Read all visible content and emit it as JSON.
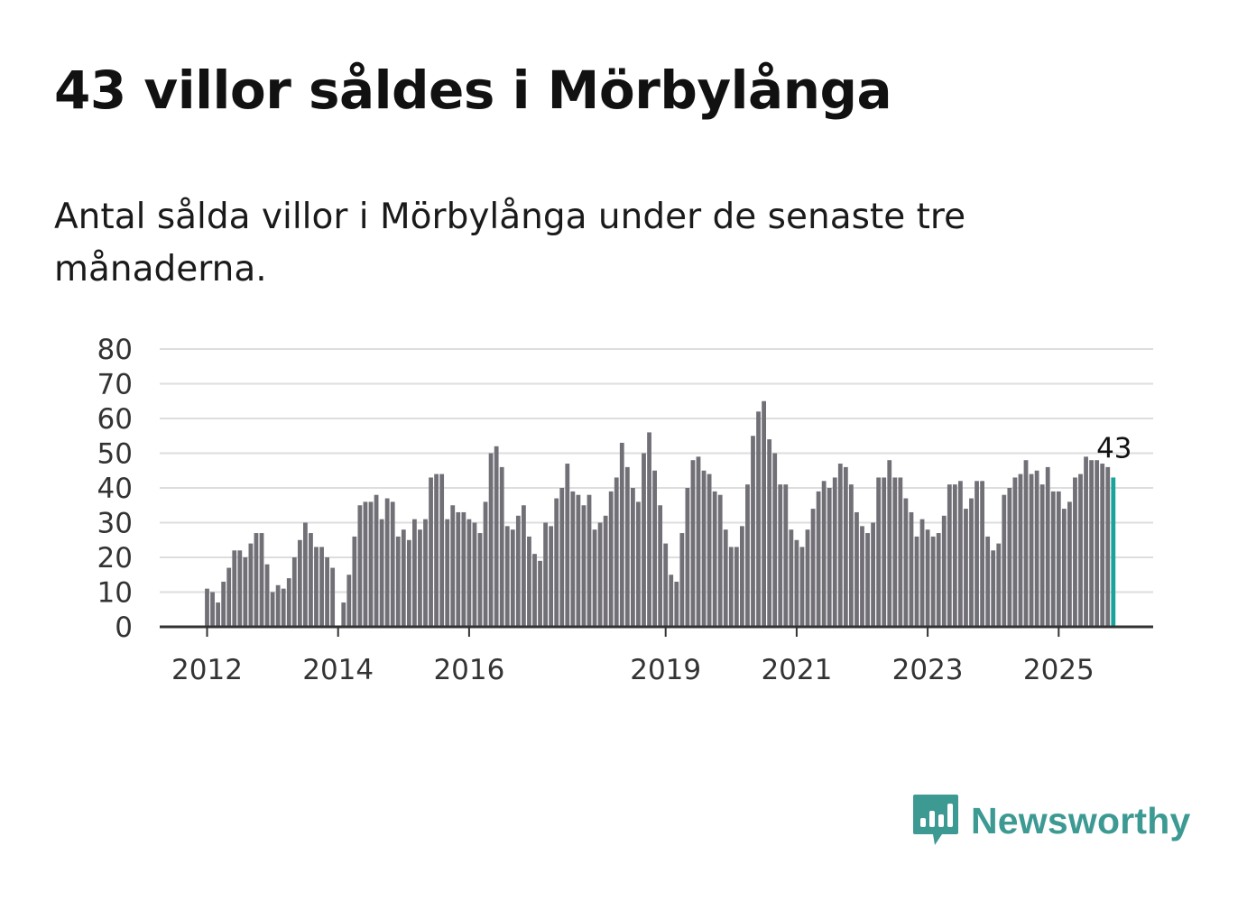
{
  "title": "43 villor såldes i Mörbylånga",
  "subtitle": "Antal sålda villor i Mörbylånga under de senaste tre månaderna.",
  "brand": {
    "name": "Newsworthy",
    "color": "#3d9a93",
    "icon": "newsworthy-chart-bubble-icon"
  },
  "colors": {
    "bar": "#727077",
    "highlight": "#1aa39a",
    "grid": "#dddddd",
    "axis": "#333333"
  },
  "chart_data": {
    "type": "bar",
    "title": "Antal sålda villor i Mörbylånga under de senaste tre månaderna.",
    "xlabel": "",
    "ylabel": "",
    "ylim": [
      0,
      80
    ],
    "yticks": [
      0,
      10,
      20,
      30,
      40,
      50,
      60,
      70,
      80
    ],
    "xtick_labels": [
      {
        "label": "2012",
        "index": 0
      },
      {
        "label": "2014",
        "index": 24
      },
      {
        "label": "2016",
        "index": 48
      },
      {
        "label": "2019",
        "index": 84
      },
      {
        "label": "2021",
        "index": 108
      },
      {
        "label": "2023",
        "index": 132
      },
      {
        "label": "2025",
        "index": 156
      }
    ],
    "start": "2012-01",
    "frequency": "monthly (rolling three-month total)",
    "values": [
      11,
      10,
      7,
      13,
      17,
      22,
      22,
      20,
      24,
      27,
      27,
      18,
      10,
      12,
      11,
      14,
      20,
      25,
      30,
      27,
      23,
      23,
      20,
      17,
      0,
      7,
      15,
      26,
      35,
      36,
      36,
      38,
      31,
      37,
      36,
      26,
      28,
      25,
      31,
      28,
      31,
      43,
      44,
      44,
      31,
      35,
      33,
      33,
      31,
      30,
      27,
      36,
      50,
      52,
      46,
      29,
      28,
      32,
      35,
      26,
      21,
      19,
      30,
      29,
      37,
      40,
      47,
      39,
      38,
      35,
      38,
      28,
      30,
      32,
      39,
      43,
      53,
      46,
      40,
      36,
      50,
      56,
      45,
      35,
      24,
      15,
      13,
      27,
      40,
      48,
      49,
      45,
      44,
      39,
      38,
      28,
      23,
      23,
      29,
      41,
      55,
      62,
      65,
      54,
      50,
      41,
      41,
      28,
      25,
      23,
      28,
      34,
      39,
      42,
      40,
      43,
      47,
      46,
      41,
      33,
      29,
      27,
      30,
      43,
      43,
      48,
      43,
      43,
      37,
      33,
      26,
      31,
      28,
      26,
      27,
      32,
      41,
      41,
      42,
      34,
      37,
      42,
      42,
      26,
      22,
      24,
      38,
      40,
      43,
      44,
      48,
      44,
      45,
      41,
      46,
      39,
      39,
      34,
      36,
      43,
      44,
      49,
      48,
      48,
      47,
      46,
      43
    ],
    "highlight_last": true,
    "last_value_label": "43"
  }
}
